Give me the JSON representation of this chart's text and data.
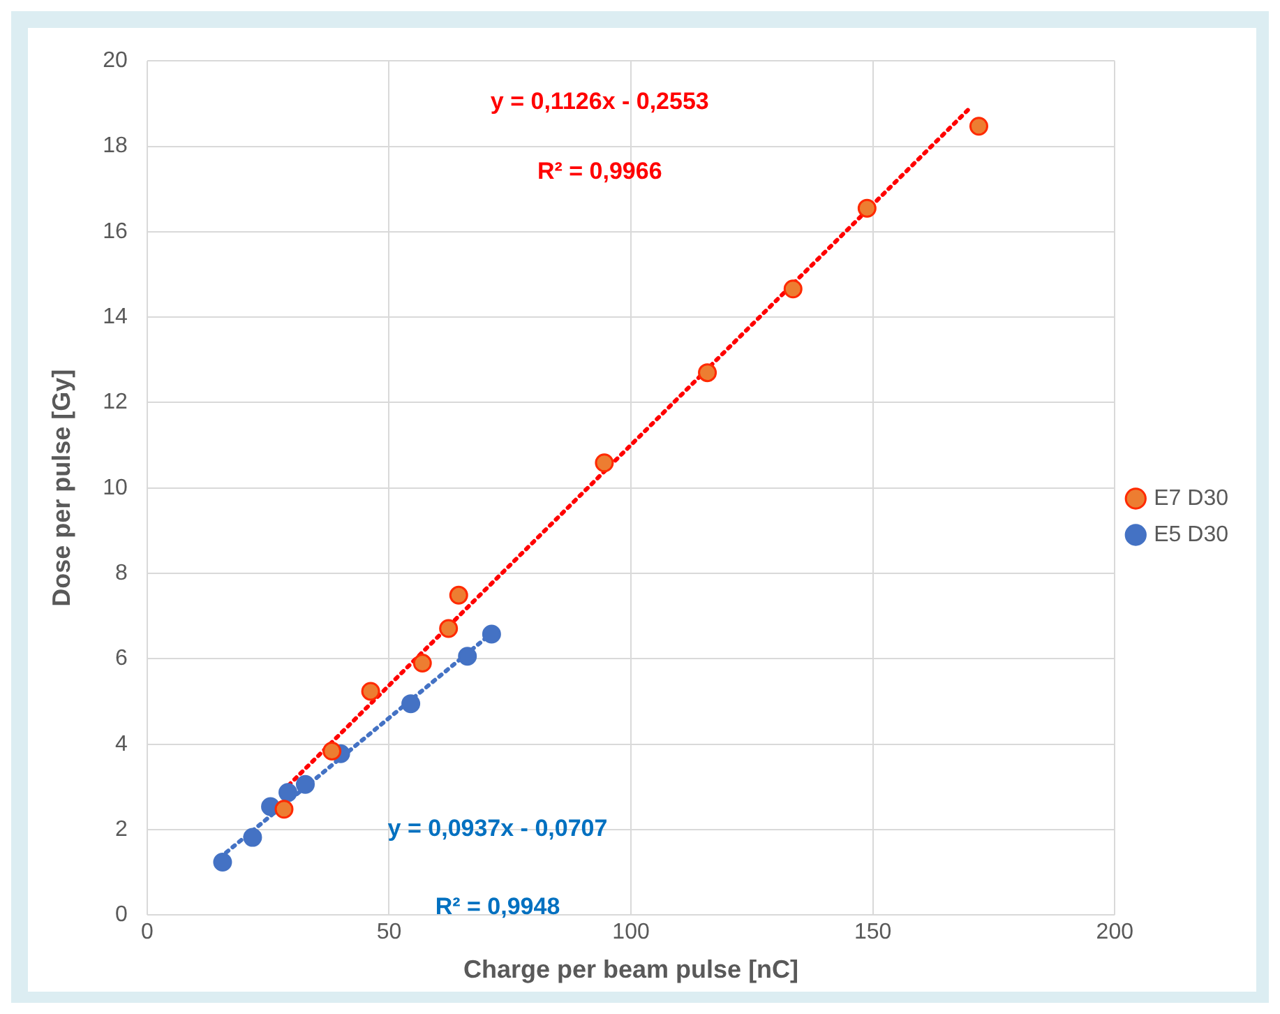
{
  "chart_data": {
    "type": "scatter",
    "xlabel": "Charge per beam pulse [nC]",
    "ylabel": "Dose per pulse [Gy]",
    "xlim": [
      0,
      200
    ],
    "xticks": [
      0,
      50,
      100,
      150,
      200
    ],
    "ylim": [
      0,
      20
    ],
    "yticks": [
      0,
      2,
      4,
      6,
      8,
      10,
      12,
      14,
      16,
      18,
      20
    ],
    "grid": true,
    "legend": "right",
    "marker": "circle",
    "series": [
      {
        "name": "E7 D30",
        "color": "#ed7d31",
        "x": [
          28.3,
          38.2,
          46.2,
          56.9,
          62.3,
          64.4,
          94.5,
          115.8,
          133.5,
          148.8,
          171.9
        ],
        "values": [
          2.48,
          3.84,
          5.24,
          5.9,
          6.71,
          7.49,
          10.59,
          12.7,
          14.66,
          16.55,
          18.47
        ]
      },
      {
        "name": "E5 D30",
        "color": "#4472c4",
        "x": [
          15.6,
          21.8,
          25.5,
          29.1,
          32.7,
          40.0,
          54.5,
          66.2,
          71.2
        ],
        "values": [
          1.24,
          1.82,
          2.54,
          2.87,
          3.06,
          3.78,
          4.95,
          6.06,
          6.58
        ]
      },
      {
        "type": "line",
        "color": "#ff0000",
        "line_style": "dotted",
        "marker": "none",
        "x": [
          28,
          170
        ],
        "values": [
          2.9,
          18.89
        ]
      },
      {
        "type": "line",
        "color": "#4472c4",
        "line_style": "dotted",
        "marker": "none",
        "x": [
          15,
          71
        ],
        "values": [
          1.34,
          6.58
        ]
      }
    ],
    "annotations": [
      "y = 0,1126x - 0,2553",
      "R² = 0,9966",
      "y = 0,0937x - 0,0707",
      "R² = 0,9948"
    ]
  }
}
